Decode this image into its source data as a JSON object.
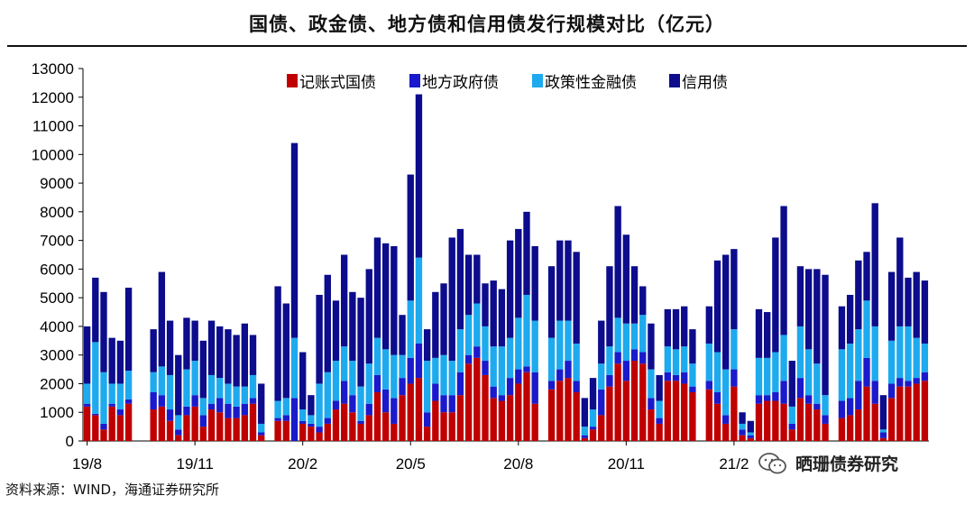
{
  "title": "国债、政金债、地方债和信用债发行规模对比（亿元）",
  "source": "资料来源：WIND，海通证券研究所",
  "watermark": "晒珊债券研究",
  "watermark_icon": "wechat-icon",
  "chart_data": {
    "type": "bar",
    "stacked": true,
    "title": "国债、政金债、地方债和信用债发行规模对比（亿元）",
    "xlabel": "",
    "ylabel": "",
    "ylim": [
      0,
      13000
    ],
    "yticks": [
      0,
      1000,
      2000,
      3000,
      4000,
      5000,
      6000,
      7000,
      8000,
      9000,
      10000,
      11000,
      12000,
      13000
    ],
    "x_tick_labels": [
      {
        "label": "19/8",
        "index": 0
      },
      {
        "label": "19/11",
        "index": 13
      },
      {
        "label": "20/2",
        "index": 26
      },
      {
        "label": "20/5",
        "index": 39
      },
      {
        "label": "20/8",
        "index": 52
      },
      {
        "label": "20/11",
        "index": 65
      },
      {
        "label": "21/2",
        "index": 78
      }
    ],
    "legend_position": "top",
    "grid": false,
    "series": [
      {
        "name": "记账式国债",
        "color": "#c00000",
        "values": [
          1200,
          900,
          400,
          1200,
          900,
          1300,
          0,
          0,
          1100,
          1200,
          700,
          200,
          900,
          1200,
          500,
          1100,
          1000,
          800,
          800,
          900,
          1300,
          200,
          0,
          700,
          700,
          0,
          600,
          500,
          300,
          600,
          1100,
          1300,
          1000,
          600,
          900,
          1700,
          1000,
          600,
          1600,
          2000,
          2200,
          500,
          1400,
          1000,
          1000,
          1600,
          2700,
          2900,
          2300,
          1500,
          1400,
          1600,
          2000,
          2400,
          1300,
          0,
          1800,
          2100,
          2200,
          1700,
          100,
          400,
          900,
          1900,
          2700,
          2100,
          2800,
          2700,
          1100,
          600,
          2100,
          2100,
          2000,
          1700,
          0,
          1800,
          1300,
          600,
          1900,
          200,
          100,
          1300,
          1400,
          1400,
          1300,
          400,
          1500,
          1300,
          1100,
          600,
          0,
          800,
          900,
          1100,
          1900,
          1300,
          100,
          1500,
          1900,
          1900,
          2000,
          2100
        ]
      },
      {
        "name": "地方政府债",
        "color": "#1a1acc",
        "values": [
          100,
          50,
          200,
          100,
          200,
          150,
          0,
          0,
          600,
          400,
          400,
          200,
          300,
          400,
          400,
          200,
          500,
          500,
          400,
          400,
          200,
          100,
          0,
          100,
          200,
          1500,
          100,
          100,
          200,
          200,
          300,
          800,
          600,
          100,
          400,
          600,
          800,
          900,
          600,
          900,
          1200,
          500,
          600,
          600,
          600,
          800,
          300,
          400,
          500,
          400,
          200,
          600,
          500,
          200,
          1100,
          0,
          300,
          400,
          600,
          400,
          100,
          100,
          900,
          400,
          400,
          700,
          400,
          400,
          400,
          200,
          300,
          200,
          400,
          200,
          0,
          300,
          400,
          300,
          600,
          200,
          100,
          300,
          200,
          300,
          800,
          200,
          700,
          300,
          200,
          300,
          0,
          600,
          600,
          1000,
          1000,
          800,
          200,
          500,
          300,
          200,
          200,
          300
        ]
      },
      {
        "name": "政策性金融债",
        "color": "#1eaaee",
        "values": [
          700,
          2500,
          1800,
          700,
          900,
          1000,
          0,
          0,
          700,
          1000,
          1200,
          500,
          1300,
          1200,
          600,
          1000,
          700,
          700,
          700,
          600,
          800,
          300,
          0,
          600,
          600,
          2100,
          400,
          300,
          1500,
          1600,
          1400,
          1200,
          1200,
          1200,
          1400,
          1300,
          1400,
          1500,
          800,
          2000,
          3000,
          1800,
          900,
          1400,
          1200,
          1500,
          1400,
          1500,
          1200,
          1400,
          1700,
          1400,
          1800,
          2500,
          1800,
          0,
          1500,
          1700,
          1400,
          1300,
          300,
          600,
          900,
          1000,
          1200,
          1300,
          900,
          1300,
          1000,
          600,
          900,
          900,
          900,
          800,
          0,
          1300,
          1400,
          1600,
          1400,
          200,
          100,
          1300,
          1300,
          1400,
          1600,
          600,
          1800,
          1600,
          1400,
          700,
          0,
          1800,
          1900,
          1800,
          2000,
          1900,
          100,
          1500,
          1800,
          1900,
          1400,
          1000
        ]
      },
      {
        "name": "信用债",
        "color": "#0c0c8c",
        "values": [
          2000,
          2250,
          2800,
          1600,
          1500,
          2900,
          0,
          0,
          1500,
          3300,
          1900,
          2100,
          1800,
          1400,
          2000,
          1900,
          1800,
          1900,
          1800,
          2200,
          1400,
          1400,
          0,
          4000,
          3300,
          6800,
          2000,
          700,
          3100,
          3400,
          2100,
          3200,
          2400,
          3100,
          3300,
          3500,
          3700,
          3800,
          1400,
          4400,
          5700,
          1100,
          2300,
          2500,
          4300,
          3500,
          2100,
          1700,
          1500,
          2300,
          2000,
          3400,
          3100,
          2900,
          2600,
          0,
          2500,
          2800,
          2800,
          3200,
          1000,
          1100,
          1500,
          2800,
          3900,
          3100,
          2000,
          1000,
          1600,
          900,
          1300,
          1400,
          1400,
          1200,
          0,
          1300,
          3200,
          4000,
          2800,
          400,
          400,
          1700,
          1600,
          4000,
          4500,
          1600,
          2100,
          2800,
          3300,
          4200,
          0,
          1500,
          1700,
          2400,
          1700,
          4300,
          1200,
          2400,
          3100,
          1700,
          2300,
          2200
        ]
      }
    ],
    "legend": [
      {
        "label": "记账式国债",
        "color": "#c00000"
      },
      {
        "label": "地方政府债",
        "color": "#1a1acc"
      },
      {
        "label": "政策性金融债",
        "color": "#1eaaee"
      },
      {
        "label": "信用债",
        "color": "#0c0c8c"
      }
    ]
  }
}
